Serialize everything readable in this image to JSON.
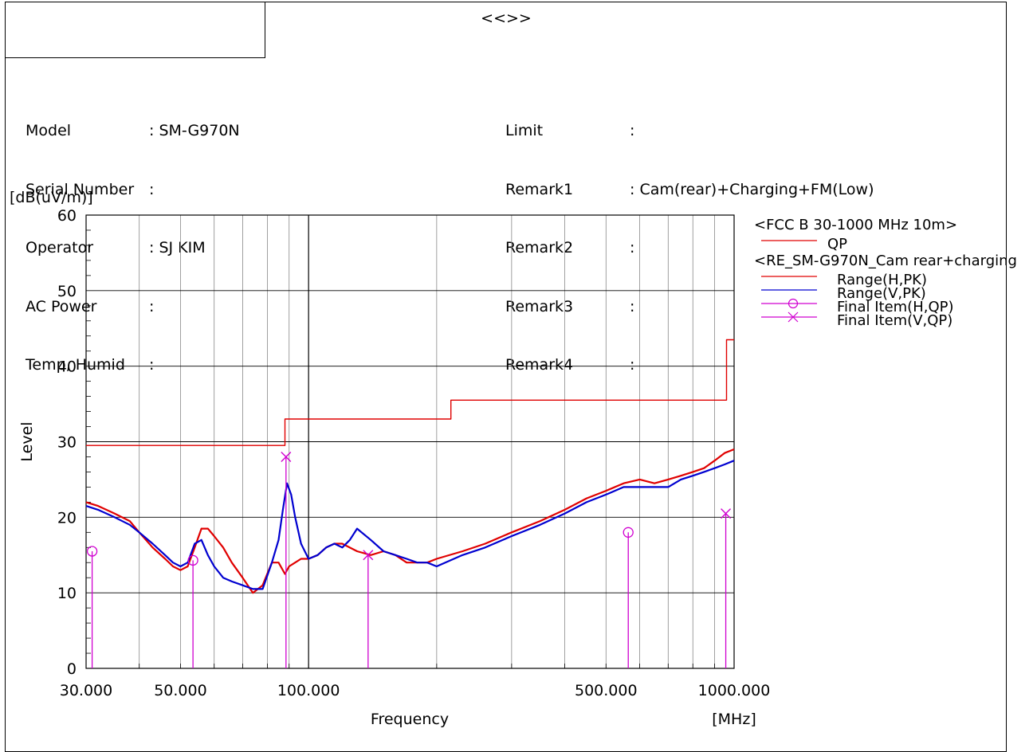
{
  "header": {
    "title": "<<>>"
  },
  "info_left": [
    {
      "label": "Model",
      "value": ": SM-G970N"
    },
    {
      "label": "Serial Number",
      "value": ":"
    },
    {
      "label": "Operator",
      "value": ": SJ KIM"
    },
    {
      "label": "AC Power",
      "value": ":"
    },
    {
      "label": "Temp, Humid",
      "value": ":"
    }
  ],
  "info_right": [
    {
      "label": "Limit",
      "value": ":"
    },
    {
      "label": "Remark1",
      "value": ": Cam(rear)+Charging+FM(Low)"
    },
    {
      "label": "Remark2",
      "value": ":"
    },
    {
      "label": "Remark3",
      "value": ":"
    },
    {
      "label": "Remark4",
      "value": ":"
    }
  ],
  "chart_data": {
    "type": "line",
    "x_scale": "log",
    "xlabel": "Frequency",
    "x_unit": "[MHz]",
    "ylabel": "Level",
    "y_unit": "[dB(uV/m)]",
    "xlim": [
      30,
      1000
    ],
    "ylim": [
      0,
      60
    ],
    "x_tick_labels": [
      {
        "value": 30,
        "label": "30.000"
      },
      {
        "value": 50,
        "label": "50.000"
      },
      {
        "value": 100,
        "label": "100.000"
      },
      {
        "value": 500,
        "label": "500.000"
      },
      {
        "value": 1000,
        "label": "1000.000"
      }
    ],
    "y_tick_labels": [
      0,
      10,
      20,
      30,
      40,
      50,
      60
    ],
    "grid": true,
    "legend_position": "right",
    "legend": [
      {
        "group": "<FCC B 30-1000 MHz 10m>"
      },
      {
        "name": "QP",
        "color": "#e00000",
        "marker": "none"
      },
      {
        "group": "<RE_SM-G970N_Cam rear+charging"
      },
      {
        "name": "Range(H,PK)",
        "color": "#e00000",
        "marker": "none"
      },
      {
        "name": "Range(V,PK)",
        "color": "#0000d0",
        "marker": "none"
      },
      {
        "name": "Final Item(H,QP)",
        "color": "#d000d0",
        "marker": "circle"
      },
      {
        "name": "Final Item(V,QP)",
        "color": "#d000d0",
        "marker": "cross"
      }
    ],
    "series": [
      {
        "name": "QP",
        "kind": "limit-step",
        "color": "#e00000",
        "x": [
          30,
          88,
          88,
          216,
          216,
          960,
          960,
          1000
        ],
        "y": [
          29.5,
          29.5,
          33.0,
          33.0,
          35.5,
          35.5,
          43.5,
          43.5
        ]
      },
      {
        "name": "Range(H,PK)",
        "color": "#e00000",
        "x": [
          30,
          32,
          35,
          38,
          40,
          43,
          46,
          48,
          50,
          52,
          54,
          56,
          58,
          60,
          63,
          66,
          70,
          74,
          78,
          82,
          85,
          88,
          90,
          93,
          96,
          100,
          105,
          110,
          115,
          120,
          130,
          140,
          150,
          160,
          170,
          180,
          190,
          200,
          230,
          260,
          300,
          350,
          400,
          450,
          500,
          550,
          600,
          650,
          700,
          750,
          800,
          850,
          900,
          950,
          1000
        ],
        "y": [
          22.0,
          21.5,
          20.5,
          19.5,
          18.0,
          16.0,
          14.5,
          13.5,
          13.0,
          13.5,
          16.0,
          18.5,
          18.5,
          17.5,
          16.0,
          14.0,
          12.0,
          10.0,
          11.0,
          14.0,
          14.0,
          12.5,
          13.5,
          14.0,
          14.5,
          14.5,
          15.0,
          16.0,
          16.5,
          16.5,
          15.5,
          15.0,
          15.5,
          15.0,
          14.0,
          14.0,
          14.0,
          14.5,
          15.5,
          16.5,
          18.0,
          19.5,
          21.0,
          22.5,
          23.5,
          24.5,
          25.0,
          24.5,
          25.0,
          25.5,
          26.0,
          26.5,
          27.5,
          28.5,
          29.0
        ]
      },
      {
        "name": "Range(V,PK)",
        "color": "#0000d0",
        "x": [
          30,
          32,
          35,
          38,
          40,
          43,
          46,
          48,
          50,
          52,
          54,
          56,
          58,
          60,
          63,
          66,
          70,
          74,
          78,
          82,
          85,
          87,
          89,
          91,
          93,
          96,
          100,
          105,
          110,
          115,
          120,
          125,
          130,
          140,
          150,
          160,
          170,
          180,
          190,
          200,
          230,
          260,
          300,
          350,
          400,
          450,
          500,
          550,
          600,
          650,
          700,
          750,
          800,
          850,
          900,
          950,
          1000
        ],
        "y": [
          21.5,
          21.0,
          20.0,
          19.0,
          18.0,
          16.5,
          15.0,
          14.0,
          13.5,
          14.0,
          16.5,
          17.0,
          15.0,
          13.5,
          12.0,
          11.5,
          11.0,
          10.5,
          10.5,
          14.0,
          17.0,
          21.0,
          24.5,
          23.0,
          20.0,
          16.5,
          14.5,
          15.0,
          16.0,
          16.5,
          16.0,
          17.0,
          18.5,
          17.0,
          15.5,
          15.0,
          14.5,
          14.0,
          14.0,
          13.5,
          15.0,
          16.0,
          17.5,
          19.0,
          20.5,
          22.0,
          23.0,
          24.0,
          24.0,
          24.0,
          24.0,
          25.0,
          25.5,
          26.0,
          26.5,
          27.0,
          27.5
        ]
      }
    ],
    "final_items": [
      {
        "name": "Final Item(H,QP)",
        "marker": "circle",
        "color": "#d000d0",
        "x": [
          31.0,
          53.5,
          564.0
        ],
        "y": [
          15.5,
          14.3,
          18.0
        ]
      },
      {
        "name": "Final Item(V,QP)",
        "marker": "cross",
        "color": "#d000d0",
        "x": [
          88.5,
          138.0,
          956.0
        ],
        "y": [
          28.0,
          15.0,
          20.5
        ]
      }
    ]
  }
}
